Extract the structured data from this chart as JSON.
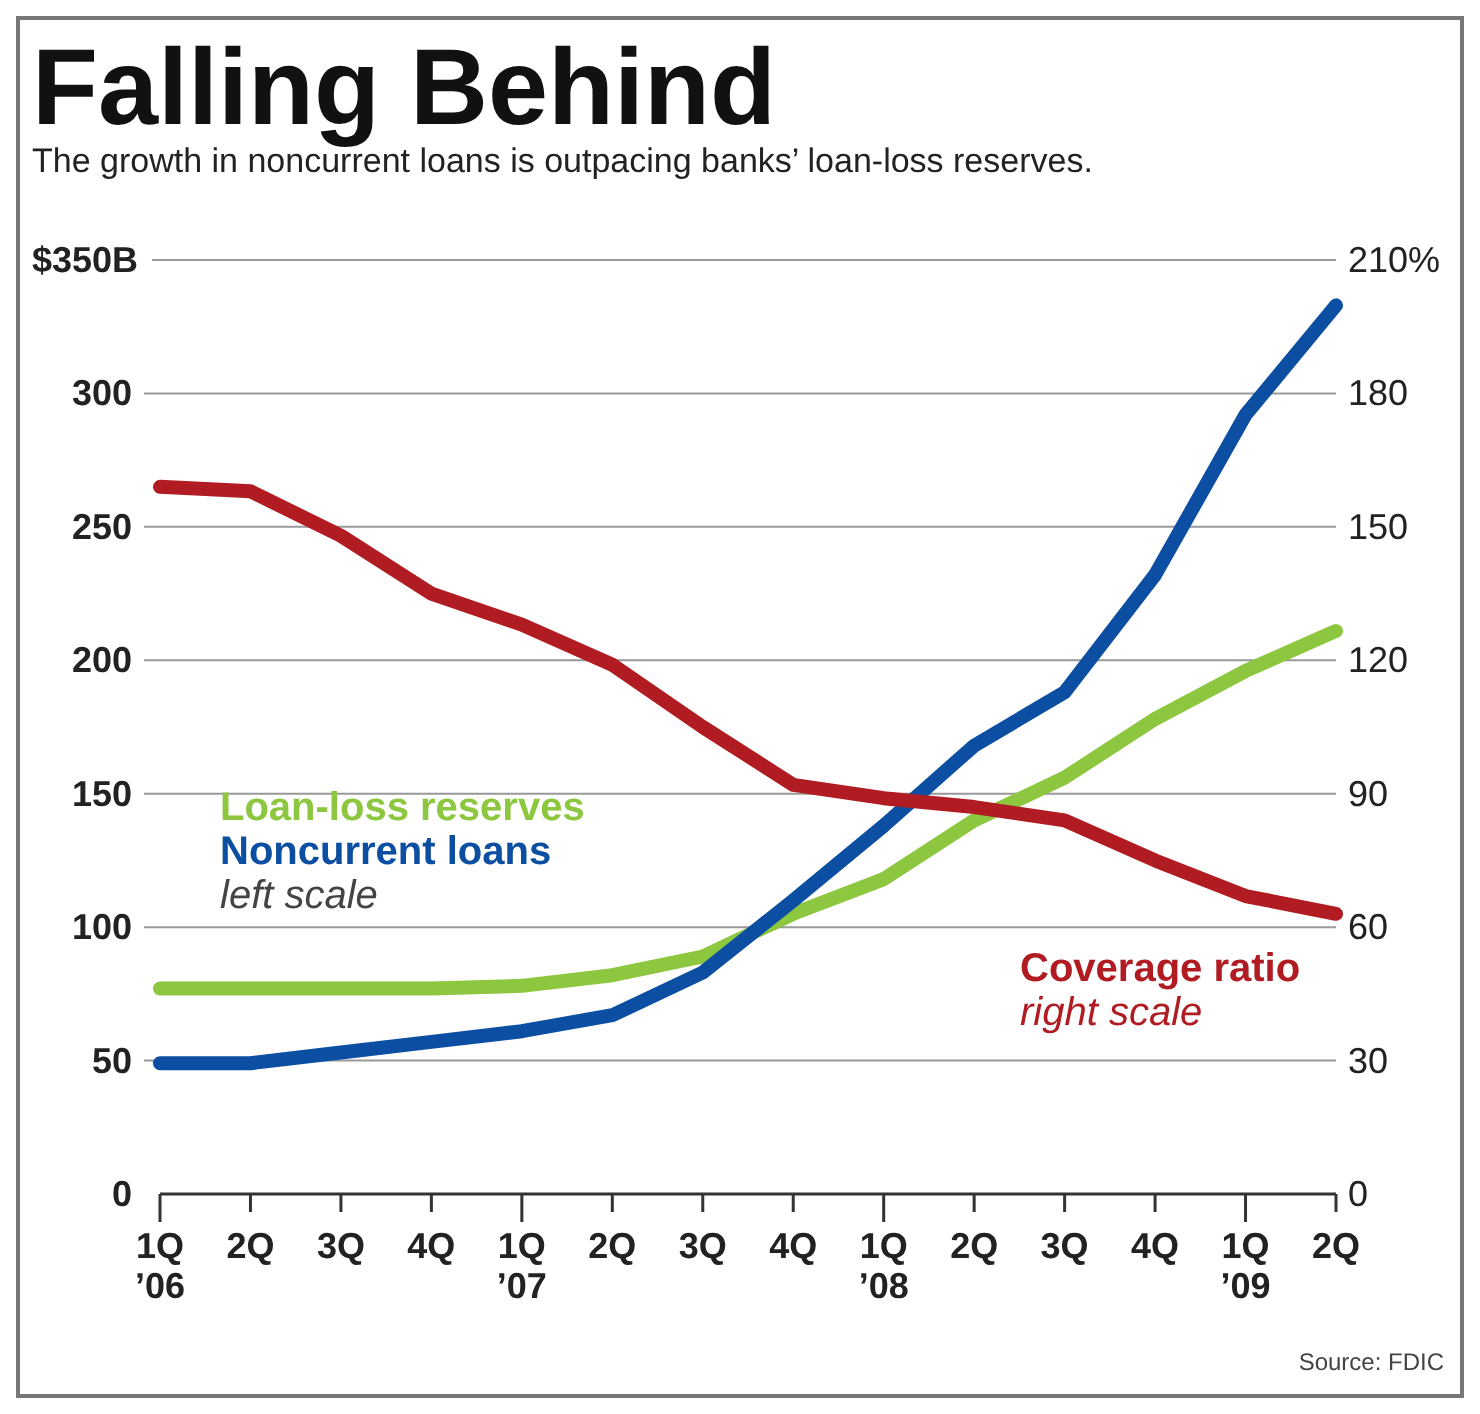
{
  "chart_data": {
    "type": "line",
    "title": "Falling Behind",
    "subtitle": "The growth in noncurrent loans is outpacing banks’ loan-loss reserves.",
    "categories": [
      "1Q\n’06",
      "2Q",
      "3Q",
      "4Q",
      "1Q\n’07",
      "2Q",
      "3Q",
      "4Q",
      "1Q\n’08",
      "2Q",
      "3Q",
      "4Q",
      "1Q\n’09",
      "2Q"
    ],
    "series": [
      {
        "name": "Loan-loss reserves",
        "color": "#8dc63f",
        "values": [
          77,
          77,
          77,
          77,
          78,
          82,
          89,
          105,
          118,
          140,
          156,
          178,
          196,
          211
        ]
      },
      {
        "name": "Noncurrent loans",
        "color": "#0b4ea2",
        "values": [
          49,
          49,
          53,
          57,
          61,
          67,
          83,
          110,
          138,
          168,
          188,
          232,
          292,
          333
        ]
      },
      {
        "name": "Coverage ratio",
        "color": "#b01c22",
        "axis": "y2",
        "values": [
          159,
          158,
          148,
          135,
          128,
          119,
          105,
          92,
          89,
          87,
          84,
          75,
          67,
          63
        ]
      }
    ],
    "ylim": [
      0,
      350
    ],
    "yticks": [
      0,
      50,
      100,
      150,
      200,
      250,
      300,
      {
        "value": 350,
        "label": "$350B"
      }
    ],
    "y2lim": [
      0,
      210
    ],
    "y2ticks": [
      0,
      30,
      60,
      90,
      120,
      150,
      180,
      {
        "value": 210,
        "label": "210%"
      }
    ],
    "grid": "y",
    "line_style": "solid",
    "marker": "none",
    "annotations": [
      "left scale",
      "right scale",
      "Source: FDIC"
    ]
  }
}
